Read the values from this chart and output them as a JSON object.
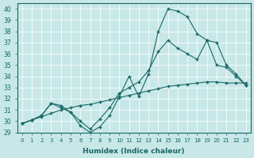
{
  "xlabel": "Humidex (Indice chaleur)",
  "ylabel": "",
  "bg_color": "#c8e8e8",
  "line_color": "#1a6666",
  "xlim": [
    -0.5,
    23.5
  ],
  "ylim": [
    29,
    40.5
  ],
  "yticks": [
    29,
    30,
    31,
    32,
    33,
    34,
    35,
    36,
    37,
    38,
    39,
    40
  ],
  "xticks": [
    0,
    1,
    2,
    3,
    4,
    5,
    6,
    7,
    8,
    9,
    10,
    11,
    12,
    13,
    14,
    15,
    16,
    17,
    18,
    19,
    20,
    21,
    22,
    23
  ],
  "series": {
    "line1": {
      "x": [
        0,
        1,
        2,
        3,
        4,
        5,
        6,
        7,
        8,
        9,
        10,
        11,
        12,
        13,
        14,
        15,
        16,
        17,
        18,
        19,
        20,
        21,
        22,
        23
      ],
      "y": [
        29.8,
        30.1,
        30.5,
        31.6,
        31.2,
        30.8,
        29.6,
        29.0,
        29.5,
        30.5,
        32.2,
        34.0,
        32.2,
        34.2,
        38.0,
        40.0,
        39.8,
        39.3,
        37.8,
        37.2,
        35.0,
        34.8,
        34.0,
        33.2
      ]
    },
    "line2": {
      "x": [
        0,
        1,
        2,
        3,
        4,
        5,
        6,
        7,
        8,
        9,
        10,
        11,
        12,
        13,
        14,
        15,
        16,
        17,
        18,
        19,
        20,
        21,
        22,
        23
      ],
      "y": [
        29.8,
        30.1,
        30.5,
        31.6,
        31.4,
        30.8,
        30.0,
        29.3,
        30.2,
        31.2,
        32.5,
        33.0,
        33.5,
        34.5,
        36.2,
        37.2,
        36.5,
        36.0,
        35.5,
        37.2,
        37.0,
        35.0,
        34.2,
        33.2
      ]
    },
    "line3": {
      "x": [
        0,
        1,
        2,
        3,
        4,
        5,
        6,
        7,
        8,
        9,
        10,
        11,
        12,
        13,
        14,
        15,
        16,
        17,
        18,
        19,
        20,
        21,
        22,
        23
      ],
      "y": [
        29.8,
        30.1,
        30.4,
        30.7,
        31.0,
        31.2,
        31.4,
        31.5,
        31.7,
        31.9,
        32.1,
        32.3,
        32.5,
        32.7,
        32.9,
        33.1,
        33.2,
        33.3,
        33.4,
        33.5,
        33.5,
        33.4,
        33.4,
        33.4
      ]
    }
  }
}
